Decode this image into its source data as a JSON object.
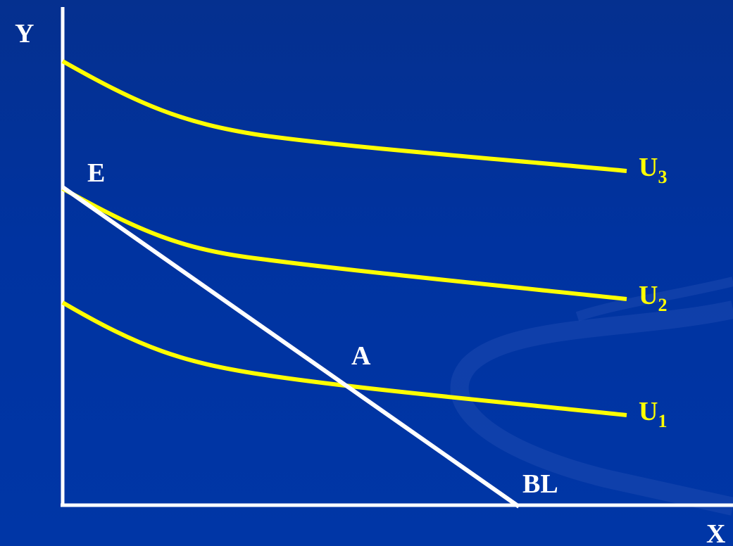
{
  "diagram": {
    "axes": {
      "y_label": "Y",
      "x_label": "X"
    },
    "points": {
      "endowment_label": "E",
      "intersection_label": "A"
    },
    "budget_line": {
      "label": "BL"
    },
    "indifference_curves": [
      {
        "base": "U",
        "sub": "3"
      },
      {
        "base": "U",
        "sub": "2"
      },
      {
        "base": "U",
        "sub": "1"
      }
    ]
  },
  "colors": {
    "background": "#0033a0",
    "axes": "#ffffff",
    "budget_line": "#ffffff",
    "curves": "#ffff00",
    "text_white": "#ffffff",
    "text_yellow": "#ffff00"
  }
}
